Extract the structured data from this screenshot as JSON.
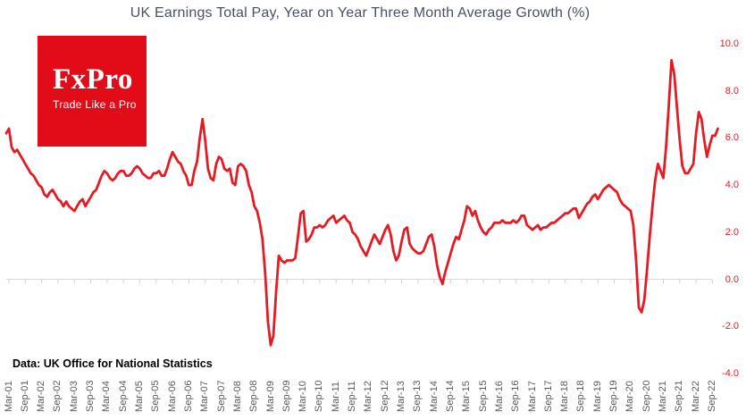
{
  "title": "UK Earnings Total Pay, Year on Year Three Month Average Growth (%)",
  "source_note": "Data: UK Office for National Statistics",
  "logo": {
    "wordmark": "FxPro",
    "tagline": "Trade Like a Pro"
  },
  "colors": {
    "background": "#ffffff",
    "title": "#4a5160",
    "line": "#e41b23",
    "logo_bg": "#e20c18",
    "y_label": "#e41b23",
    "x_label": "#595959",
    "axis": "#d9d9d9",
    "tick": "#d0d0d0",
    "source": "#000000"
  },
  "chart_data": {
    "type": "line",
    "title": "UK Earnings Total Pay, Year on Year Three Month Average Growth (%)",
    "frequency": "monthly",
    "x_start": "Feb-01",
    "x_end": "Nov-22",
    "ylim": [
      -4.0,
      10.0
    ],
    "y_tick_interval": 2.0,
    "y_tick_labels": [
      "10.0",
      "8.0",
      "6.0",
      "4.0",
      "2.0",
      "0.0",
      "-2.0",
      "-4.0"
    ],
    "x_tick_labels": [
      "Mar-01",
      "Sep-01",
      "Mar-02",
      "Sep-02",
      "Mar-03",
      "Sep-03",
      "Mar-04",
      "Sep-04",
      "Mar-05",
      "Sep-05",
      "Mar-06",
      "Sep-06",
      "Mar-07",
      "Sep-07",
      "Mar-08",
      "Sep-08",
      "Mar-09",
      "Sep-09",
      "Mar-10",
      "Sep-10",
      "Mar-11",
      "Sep-11",
      "Mar-12",
      "Sep-12",
      "Mar-13",
      "Sep-13",
      "Mar-14",
      "Sep-14",
      "Mar-15",
      "Sep-15",
      "Mar-16",
      "Sep-16",
      "Mar-17",
      "Sep-17",
      "Mar-18",
      "Sep-18",
      "Mar-19",
      "Sep-19",
      "Mar-20",
      "Sep-20",
      "Mar-21",
      "Sep-21",
      "Mar-22",
      "Sep-22"
    ],
    "grid": "none",
    "legend": "none",
    "line_color": "#e41b23",
    "values": [
      6.2,
      6.4,
      5.6,
      5.4,
      5.5,
      5.3,
      5.1,
      4.9,
      4.7,
      4.5,
      4.4,
      4.2,
      4.0,
      3.9,
      3.6,
      3.5,
      3.7,
      3.8,
      3.6,
      3.4,
      3.3,
      3.1,
      3.3,
      3.1,
      3.0,
      2.9,
      3.1,
      3.3,
      3.4,
      3.1,
      3.3,
      3.5,
      3.7,
      3.8,
      4.1,
      4.4,
      4.6,
      4.5,
      4.3,
      4.2,
      4.3,
      4.5,
      4.6,
      4.6,
      4.4,
      4.4,
      4.5,
      4.7,
      4.8,
      4.7,
      4.5,
      4.4,
      4.3,
      4.3,
      4.5,
      4.5,
      4.6,
      4.4,
      4.4,
      4.7,
      5.1,
      5.4,
      5.2,
      5.0,
      4.9,
      4.6,
      4.4,
      4.0,
      4.0,
      4.6,
      5.0,
      6.0,
      6.8,
      5.9,
      4.7,
      4.3,
      4.2,
      4.9,
      5.2,
      5.1,
      4.7,
      4.6,
      4.7,
      4.1,
      4.0,
      4.8,
      4.9,
      4.8,
      4.6,
      4.0,
      3.7,
      3.1,
      2.9,
      2.4,
      1.7,
      0.2,
      -1.8,
      -2.8,
      -2.4,
      -0.5,
      1.0,
      0.8,
      0.7,
      0.8,
      0.8,
      0.8,
      0.9,
      1.8,
      2.8,
      2.9,
      1.6,
      1.7,
      1.9,
      2.2,
      2.2,
      2.3,
      2.2,
      2.3,
      2.5,
      2.6,
      2.7,
      2.4,
      2.5,
      2.6,
      2.7,
      2.5,
      2.4,
      2.0,
      1.9,
      1.7,
      1.4,
      1.2,
      1.0,
      1.3,
      1.6,
      1.9,
      1.7,
      1.5,
      1.8,
      2.1,
      2.3,
      1.9,
      1.2,
      0.8,
      1.0,
      1.6,
      2.1,
      2.2,
      1.5,
      1.3,
      1.2,
      1.1,
      1.1,
      1.2,
      1.5,
      1.8,
      1.9,
      1.4,
      0.6,
      0.1,
      -0.2,
      0.3,
      0.7,
      1.1,
      1.5,
      1.8,
      1.7,
      2.1,
      2.5,
      3.1,
      3.0,
      2.7,
      2.9,
      2.5,
      2.2,
      2.0,
      1.9,
      2.1,
      2.2,
      2.4,
      2.4,
      2.4,
      2.5,
      2.4,
      2.4,
      2.4,
      2.5,
      2.4,
      2.5,
      2.7,
      2.7,
      2.3,
      2.2,
      2.1,
      2.2,
      2.3,
      2.1,
      2.2,
      2.2,
      2.3,
      2.4,
      2.4,
      2.5,
      2.6,
      2.7,
      2.8,
      2.8,
      2.9,
      3.0,
      3.0,
      2.6,
      2.8,
      3.0,
      3.2,
      3.3,
      3.5,
      3.6,
      3.4,
      3.6,
      3.8,
      3.9,
      4.0,
      3.9,
      3.8,
      3.7,
      3.4,
      3.2,
      3.1,
      3.0,
      2.9,
      2.3,
      0.8,
      -1.2,
      -1.4,
      -0.9,
      0.4,
      1.8,
      3.1,
      4.2,
      4.9,
      4.6,
      4.3,
      5.6,
      7.4,
      9.3,
      8.7,
      7.3,
      5.9,
      4.8,
      4.5,
      4.5,
      4.7,
      4.9,
      6.2,
      7.1,
      6.8,
      5.9,
      5.2,
      5.7,
      6.1,
      6.1,
      6.4
    ]
  }
}
